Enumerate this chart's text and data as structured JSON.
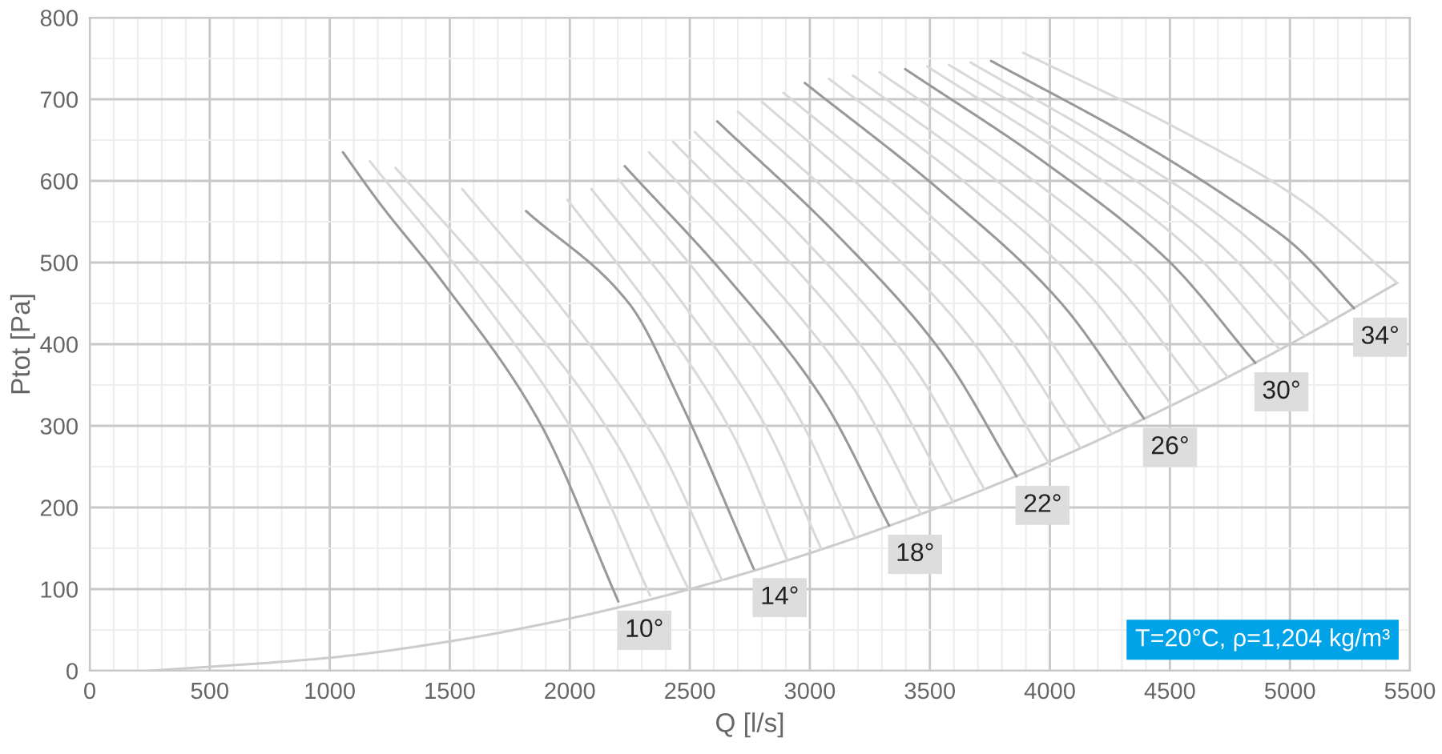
{
  "chart_data": {
    "type": "line",
    "xlabel": "Q [l/s]",
    "ylabel": "Ptot [Pa]",
    "xlim": [
      0,
      5500
    ],
    "ylim": [
      0,
      800
    ],
    "grid": true,
    "xticks": [
      0,
      {
        "value": 100,
        "label": null
      },
      {
        "value": 200,
        "label": null
      },
      {
        "value": 300,
        "label": null
      },
      {
        "value": 400,
        "label": null
      },
      500,
      {
        "value": 600,
        "label": null
      },
      {
        "value": 700,
        "label": null
      },
      {
        "value": 800,
        "label": null
      },
      {
        "value": 900,
        "label": null
      },
      1000,
      {
        "value": 1100,
        "label": null
      },
      {
        "value": 1200,
        "label": null
      },
      {
        "value": 1300,
        "label": null
      },
      {
        "value": 1400,
        "label": null
      },
      1500,
      {
        "value": 1600,
        "label": null
      },
      {
        "value": 1700,
        "label": null
      },
      {
        "value": 1800,
        "label": null
      },
      {
        "value": 1900,
        "label": null
      },
      2000,
      {
        "value": 2100,
        "label": null
      },
      {
        "value": 2200,
        "label": null
      },
      {
        "value": 2300,
        "label": null
      },
      {
        "value": 2400,
        "label": null
      },
      2500,
      {
        "value": 2600,
        "label": null
      },
      {
        "value": 2700,
        "label": null
      },
      {
        "value": 2800,
        "label": null
      },
      {
        "value": 2900,
        "label": null
      },
      3000,
      {
        "value": 3100,
        "label": null
      },
      {
        "value": 3200,
        "label": null
      },
      {
        "value": 3300,
        "label": null
      },
      {
        "value": 3400,
        "label": null
      },
      3500,
      {
        "value": 3600,
        "label": null
      },
      {
        "value": 3700,
        "label": null
      },
      {
        "value": 3800,
        "label": null
      },
      {
        "value": 3900,
        "label": null
      },
      4000,
      {
        "value": 4100,
        "label": null
      },
      {
        "value": 4200,
        "label": null
      },
      {
        "value": 4300,
        "label": null
      },
      {
        "value": 4400,
        "label": null
      },
      4500,
      {
        "value": 4600,
        "label": null
      },
      {
        "value": 4700,
        "label": null
      },
      {
        "value": 4800,
        "label": null
      },
      {
        "value": 4900,
        "label": null
      },
      5000,
      {
        "value": 5100,
        "label": null
      },
      {
        "value": 5200,
        "label": null
      },
      {
        "value": 5300,
        "label": null
      },
      {
        "value": 5400,
        "label": null
      },
      5500
    ],
    "yticks": [
      0,
      {
        "value": 50,
        "label": null
      },
      100,
      {
        "value": 150,
        "label": null
      },
      200,
      {
        "value": 250,
        "label": null
      },
      300,
      {
        "value": 350,
        "label": null
      },
      400,
      {
        "value": 450,
        "label": null
      },
      500,
      {
        "value": 550,
        "label": null
      },
      600,
      {
        "value": 650,
        "label": null
      },
      700,
      {
        "value": 750,
        "label": null
      },
      800
    ],
    "annotations": [
      "T=20°C, ρ=1,204 kg/m³"
    ],
    "series": [
      {
        "color": "#cccccc",
        "x": [
          250,
          1000,
          1500,
          2000,
          2500,
          3000,
          3500,
          4000,
          4500,
          5000,
          5447
        ],
        "values": [
          0,
          16,
          36,
          64,
          100,
          144,
          196,
          256,
          324,
          400,
          475
        ]
      },
      {
        "name": "10°",
        "color": "#999999",
        "x": [
          1055,
          1207,
          1473,
          1871,
          2202
        ],
        "values": [
          635,
          573,
          475,
          306,
          85
        ]
      },
      {
        "color": "#d9d9d9",
        "x": [
          1167,
          1634,
          2043,
          2335
        ],
        "values": [
          624,
          454,
          278,
          92
        ]
      },
      {
        "color": "#d9d9d9",
        "x": [
          1274,
          1762,
          2189,
          2494
        ],
        "values": [
          616,
          451,
          281,
          100
        ]
      },
      {
        "color": "#d9d9d9",
        "x": [
          1552,
          1985,
          2364,
          2634
        ],
        "values": [
          590,
          437,
          279,
          111
        ]
      },
      {
        "name": "14°",
        "color": "#999999",
        "x": [
          1818,
          2249,
          2468,
          2766
        ],
        "values": [
          563,
          449,
          325,
          125
        ]
      },
      {
        "color": "#d9d9d9",
        "x": [
          1990,
          2357,
          2678,
          2907
        ],
        "values": [
          577,
          436,
          290,
          135
        ]
      },
      {
        "color": "#d9d9d9",
        "x": [
          2090,
          2473,
          2809,
          3048
        ],
        "values": [
          590,
          449,
          303,
          149
        ]
      },
      {
        "color": "#d9d9d9",
        "x": [
          2202,
          2597,
          2942,
          3189
        ],
        "values": [
          602,
          462,
          317,
          163
        ]
      },
      {
        "name": "18°",
        "color": "#999999",
        "x": [
          2229,
          2669,
          3055,
          3330
        ],
        "values": [
          618,
          477,
          332,
          178
        ]
      },
      {
        "color": "#d9d9d9",
        "x": [
          2330,
          2783,
          3180,
          3463
        ],
        "values": [
          635,
          493,
          347,
          192
        ]
      },
      {
        "color": "#d9d9d9",
        "x": [
          2430,
          2896,
          3305,
          3596
        ],
        "values": [
          648,
          507,
          361,
          207
        ]
      },
      {
        "color": "#d9d9d9",
        "x": [
          2520,
          3003,
          3426,
          3728
        ],
        "values": [
          660,
          520,
          375,
          222
        ]
      },
      {
        "name": "22°",
        "color": "#999999",
        "x": [
          2614,
          3113,
          3549,
          3861
        ],
        "values": [
          673,
          534,
          390,
          238
        ]
      },
      {
        "color": "#d9d9d9",
        "x": [
          2700,
          3218,
          3671,
          3994
        ],
        "values": [
          685,
          547,
          406,
          255
        ]
      },
      {
        "color": "#d9d9d9",
        "x": [
          2800,
          3331,
          3795,
          4127
        ],
        "values": [
          697,
          561,
          421,
          273
        ]
      },
      {
        "color": "#d9d9d9",
        "x": [
          2890,
          3438,
          3917,
          4259
        ],
        "values": [
          708,
          574,
          436,
          290
        ]
      },
      {
        "name": "26°",
        "color": "#999999",
        "x": [
          2979,
          3544,
          4039,
          4392
        ],
        "values": [
          720,
          588,
          453,
          309
        ]
      },
      {
        "color": "#d9d9d9",
        "x": [
          3080,
          3651,
          4151,
          4508
        ],
        "values": [
          725,
          597,
          465,
          325
        ]
      },
      {
        "color": "#d9d9d9",
        "x": [
          3180,
          3758,
          4263,
          4624
        ],
        "values": [
          729,
          605,
          477,
          342
        ]
      },
      {
        "color": "#d9d9d9",
        "x": [
          3290,
          3870,
          4378,
          4740
        ],
        "values": [
          733,
          614,
          491,
          360
        ]
      },
      {
        "name": "30°",
        "color": "#999999",
        "x": [
          3397,
          3981,
          4491,
          4856
        ],
        "values": [
          737,
          622,
          503,
          377
        ]
      },
      {
        "color": "#d9d9d9",
        "x": [
          3490,
          4078,
          4592,
          4959
        ],
        "values": [
          740,
          629,
          514,
          393
        ]
      },
      {
        "color": "#d9d9d9",
        "x": [
          3580,
          4173,
          4692,
          5062
        ],
        "values": [
          742,
          636,
          526,
          410
        ]
      },
      {
        "color": "#d9d9d9",
        "x": [
          3670,
          4268,
          4791,
          5164
        ],
        "values": [
          745,
          643,
          538,
          427
        ]
      },
      {
        "name": "34°",
        "color": "#999999",
        "x": [
          3755,
          4360,
          4889,
          5015,
          5267
        ],
        "values": [
          747,
          650,
          550,
          522,
          444
        ]
      },
      {
        "color": "#d9d9d9",
        "x": [
          3888,
          4512,
          5057,
          5447
        ],
        "values": [
          757,
          667,
          574,
          475
        ]
      }
    ]
  }
}
